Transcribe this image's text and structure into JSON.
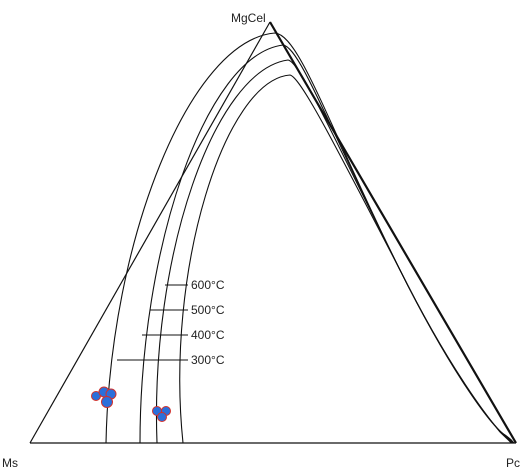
{
  "apex_labels": {
    "top": "MgCel",
    "bottom_left": "Ms",
    "bottom_right": "Pc"
  },
  "isotherm_labels": [
    "600°C",
    "500°C",
    "400°C",
    "300°C"
  ],
  "colors": {
    "lines": "#111111",
    "sample_fill": "#2a6fdb",
    "sample_outline": "#d0312d"
  }
}
